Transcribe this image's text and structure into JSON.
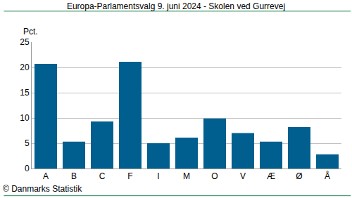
{
  "chart_data": {
    "type": "bar",
    "title": "Europa-Parlamentsvalg 9. juni 2024 - Skolen ved Gurrevej",
    "y_label": "Pct.",
    "source": "© Danmarks Statistik",
    "categories": [
      "A",
      "B",
      "C",
      "F",
      "I",
      "M",
      "O",
      "V",
      "Æ",
      "Ø",
      "Å"
    ],
    "values": [
      20.7,
      5.3,
      9.3,
      21.1,
      5.0,
      6.1,
      9.9,
      7.0,
      5.3,
      8.2,
      2.8
    ],
    "color": "#005f8e",
    "ylim": [
      0,
      25
    ],
    "yticks": [
      0,
      5,
      10,
      15,
      20,
      25
    ],
    "grid": true
  }
}
